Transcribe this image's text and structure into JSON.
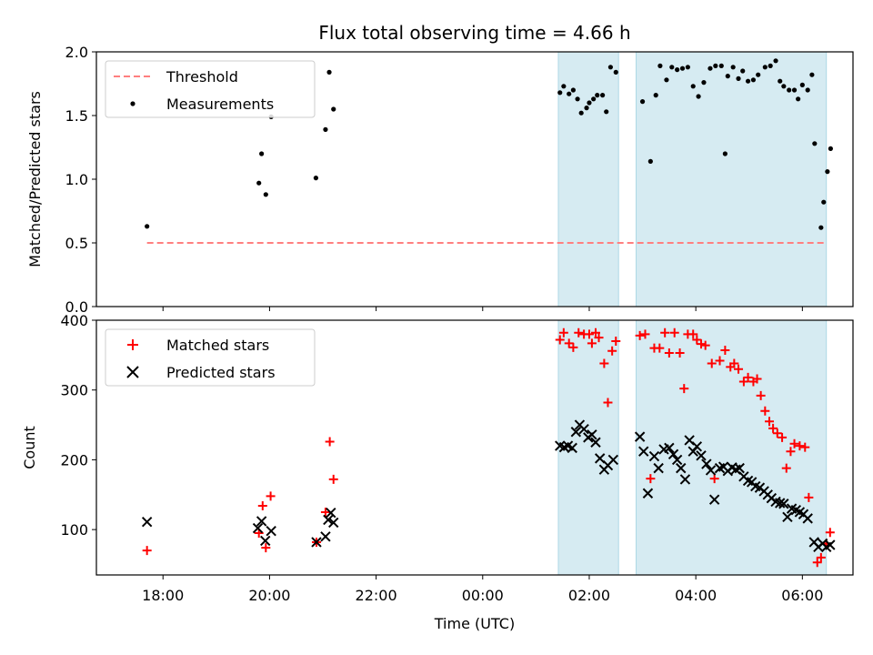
{
  "colors": {
    "threshold": "#ff7f7f",
    "measurements": "#000000",
    "matched": "#ff0000",
    "predicted": "#000000",
    "night_shade": "#add8e6"
  },
  "chart_data": [
    {
      "type": "scatter",
      "title": "Flux total observing time = 4.66 h",
      "xlabel": "",
      "ylabel": "Matched/Predicted stars",
      "x_unit": "hours since 00:00 UTC",
      "xlim": [
        -7.25,
        6.95
      ],
      "ylim": [
        0,
        2.0
      ],
      "yticks": [
        "0.0",
        "0.5",
        "1.0",
        "1.5",
        "2.0"
      ],
      "shaded_intervals": [
        [
          1.42,
          2.55
        ],
        [
          2.88,
          6.45
        ]
      ],
      "legend": {
        "position": "top-left",
        "entries": [
          "Threshold",
          "Measurements"
        ]
      },
      "series": [
        {
          "name": "Threshold",
          "kind": "line",
          "x": [
            -6.3,
            6.45
          ],
          "y": [
            0.5,
            0.5
          ]
        },
        {
          "name": "Measurements",
          "kind": "scatter",
          "points": [
            [
              -6.3,
              0.63
            ],
            [
              -4.2,
              0.97
            ],
            [
              -4.15,
              1.2
            ],
            [
              -4.07,
              0.88
            ],
            [
              -3.97,
              1.49
            ],
            [
              -3.13,
              1.01
            ],
            [
              -2.95,
              1.39
            ],
            [
              -2.88,
              1.84
            ],
            [
              -2.8,
              1.55
            ],
            [
              1.45,
              1.68
            ],
            [
              1.52,
              1.73
            ],
            [
              1.62,
              1.67
            ],
            [
              1.7,
              1.7
            ],
            [
              1.78,
              1.63
            ],
            [
              1.85,
              1.52
            ],
            [
              1.95,
              1.56
            ],
            [
              2.0,
              1.6
            ],
            [
              2.08,
              1.63
            ],
            [
              2.15,
              1.66
            ],
            [
              2.25,
              1.66
            ],
            [
              2.32,
              1.53
            ],
            [
              2.4,
              1.88
            ],
            [
              2.5,
              1.84
            ],
            [
              3.0,
              1.61
            ],
            [
              3.15,
              1.14
            ],
            [
              3.25,
              1.66
            ],
            [
              3.33,
              1.89
            ],
            [
              3.45,
              1.78
            ],
            [
              3.55,
              1.88
            ],
            [
              3.65,
              1.86
            ],
            [
              3.75,
              1.87
            ],
            [
              3.85,
              1.88
            ],
            [
              3.95,
              1.73
            ],
            [
              4.05,
              1.65
            ],
            [
              4.15,
              1.76
            ],
            [
              4.27,
              1.87
            ],
            [
              4.37,
              1.89
            ],
            [
              4.48,
              1.89
            ],
            [
              4.55,
              1.2
            ],
            [
              4.6,
              1.81
            ],
            [
              4.7,
              1.88
            ],
            [
              4.8,
              1.79
            ],
            [
              4.88,
              1.85
            ],
            [
              4.98,
              1.77
            ],
            [
              5.08,
              1.78
            ],
            [
              5.17,
              1.82
            ],
            [
              5.3,
              1.88
            ],
            [
              5.4,
              1.89
            ],
            [
              5.5,
              1.93
            ],
            [
              5.58,
              1.77
            ],
            [
              5.65,
              1.73
            ],
            [
              5.75,
              1.7
            ],
            [
              5.85,
              1.7
            ],
            [
              5.92,
              1.63
            ],
            [
              6.0,
              1.74
            ],
            [
              6.1,
              1.7
            ],
            [
              6.18,
              1.82
            ],
            [
              6.23,
              1.28
            ],
            [
              6.35,
              0.62
            ],
            [
              6.4,
              0.82
            ],
            [
              6.47,
              1.06
            ],
            [
              6.53,
              1.24
            ]
          ]
        }
      ]
    },
    {
      "type": "scatter",
      "title": "",
      "xlabel": "Time (UTC)",
      "ylabel": "Count",
      "x_unit": "hours since 00:00 UTC",
      "xlim": [
        -7.25,
        6.95
      ],
      "ylim": [
        35,
        400
      ],
      "yticks": [
        "100",
        "200",
        "300",
        "400"
      ],
      "xticks": [
        "18:00",
        "20:00",
        "22:00",
        "00:00",
        "02:00",
        "04:00",
        "06:00"
      ],
      "shaded_intervals": [
        [
          1.42,
          2.55
        ],
        [
          2.88,
          6.45
        ]
      ],
      "legend": {
        "position": "top-left",
        "entries": [
          "Matched stars",
          "Predicted stars"
        ]
      },
      "series": [
        {
          "name": "Matched stars",
          "marker": "+",
          "points": [
            [
              -6.3,
              70
            ],
            [
              -4.2,
              95
            ],
            [
              -4.13,
              134
            ],
            [
              -4.07,
              74
            ],
            [
              -3.98,
              148
            ],
            [
              -3.12,
              82
            ],
            [
              -2.95,
              125
            ],
            [
              -2.87,
              226
            ],
            [
              -2.8,
              172
            ],
            [
              1.45,
              372
            ],
            [
              1.52,
              382
            ],
            [
              1.62,
              367
            ],
            [
              1.7,
              361
            ],
            [
              1.8,
              382
            ],
            [
              1.9,
              380
            ],
            [
              2.0,
              380
            ],
            [
              2.05,
              367
            ],
            [
              2.12,
              382
            ],
            [
              2.18,
              375
            ],
            [
              2.28,
              338
            ],
            [
              2.35,
              282
            ],
            [
              2.43,
              356
            ],
            [
              2.5,
              370
            ],
            [
              2.95,
              378
            ],
            [
              3.05,
              380
            ],
            [
              3.15,
              173
            ],
            [
              3.22,
              360
            ],
            [
              3.32,
              360
            ],
            [
              3.42,
              382
            ],
            [
              3.5,
              353
            ],
            [
              3.6,
              382
            ],
            [
              3.7,
              353
            ],
            [
              3.78,
              302
            ],
            [
              3.85,
              380
            ],
            [
              3.95,
              380
            ],
            [
              4.02,
              372
            ],
            [
              4.1,
              366
            ],
            [
              4.18,
              364
            ],
            [
              4.3,
              338
            ],
            [
              4.35,
              173
            ],
            [
              4.45,
              342
            ],
            [
              4.55,
              357
            ],
            [
              4.65,
              333
            ],
            [
              4.72,
              338
            ],
            [
              4.8,
              330
            ],
            [
              4.9,
              312
            ],
            [
              4.98,
              318
            ],
            [
              5.08,
              312
            ],
            [
              5.15,
              316
            ],
            [
              5.22,
              292
            ],
            [
              5.3,
              270
            ],
            [
              5.38,
              255
            ],
            [
              5.45,
              245
            ],
            [
              5.53,
              238
            ],
            [
              5.62,
              232
            ],
            [
              5.7,
              188
            ],
            [
              5.78,
              212
            ],
            [
              5.85,
              223
            ],
            [
              5.95,
              220
            ],
            [
              6.05,
              218
            ],
            [
              6.12,
              146
            ],
            [
              6.28,
              53
            ],
            [
              6.35,
              60
            ],
            [
              6.45,
              80
            ],
            [
              6.52,
              96
            ]
          ]
        },
        {
          "name": "Predicted stars",
          "marker": "x",
          "points": [
            [
              -6.3,
              111
            ],
            [
              -4.22,
              102
            ],
            [
              -4.15,
              112
            ],
            [
              -4.08,
              84
            ],
            [
              -3.97,
              98
            ],
            [
              -3.12,
              82
            ],
            [
              -2.95,
              90
            ],
            [
              -2.9,
              114
            ],
            [
              -2.85,
              124
            ],
            [
              -2.8,
              110
            ],
            [
              1.45,
              220
            ],
            [
              1.53,
              218
            ],
            [
              1.6,
              220
            ],
            [
              1.68,
              217
            ],
            [
              1.75,
              240
            ],
            [
              1.82,
              250
            ],
            [
              1.9,
              244
            ],
            [
              1.98,
              232
            ],
            [
              2.05,
              236
            ],
            [
              2.12,
              225
            ],
            [
              2.2,
              202
            ],
            [
              2.28,
              186
            ],
            [
              2.35,
              192
            ],
            [
              2.45,
              200
            ],
            [
              2.95,
              233
            ],
            [
              3.02,
              212
            ],
            [
              3.1,
              152
            ],
            [
              3.22,
              205
            ],
            [
              3.3,
              188
            ],
            [
              3.4,
              215
            ],
            [
              3.5,
              217
            ],
            [
              3.58,
              208
            ],
            [
              3.65,
              200
            ],
            [
              3.72,
              188
            ],
            [
              3.8,
              172
            ],
            [
              3.88,
              228
            ],
            [
              3.95,
              212
            ],
            [
              4.02,
              219
            ],
            [
              4.1,
              206
            ],
            [
              4.2,
              194
            ],
            [
              4.28,
              185
            ],
            [
              4.35,
              143
            ],
            [
              4.45,
              188
            ],
            [
              4.52,
              190
            ],
            [
              4.6,
              184
            ],
            [
              4.68,
              189
            ],
            [
              4.75,
              186
            ],
            [
              4.82,
              188
            ],
            [
              4.9,
              176
            ],
            [
              4.98,
              170
            ],
            [
              5.05,
              168
            ],
            [
              5.12,
              162
            ],
            [
              5.2,
              160
            ],
            [
              5.28,
              155
            ],
            [
              5.35,
              150
            ],
            [
              5.42,
              145
            ],
            [
              5.5,
              140
            ],
            [
              5.58,
              138
            ],
            [
              5.65,
              137
            ],
            [
              5.72,
              118
            ],
            [
              5.8,
              130
            ],
            [
              5.88,
              128
            ],
            [
              5.95,
              125
            ],
            [
              6.02,
              122
            ],
            [
              6.1,
              116
            ],
            [
              6.22,
              82
            ],
            [
              6.3,
              75
            ],
            [
              6.38,
              80
            ],
            [
              6.45,
              75
            ],
            [
              6.52,
              78
            ]
          ]
        }
      ]
    }
  ]
}
